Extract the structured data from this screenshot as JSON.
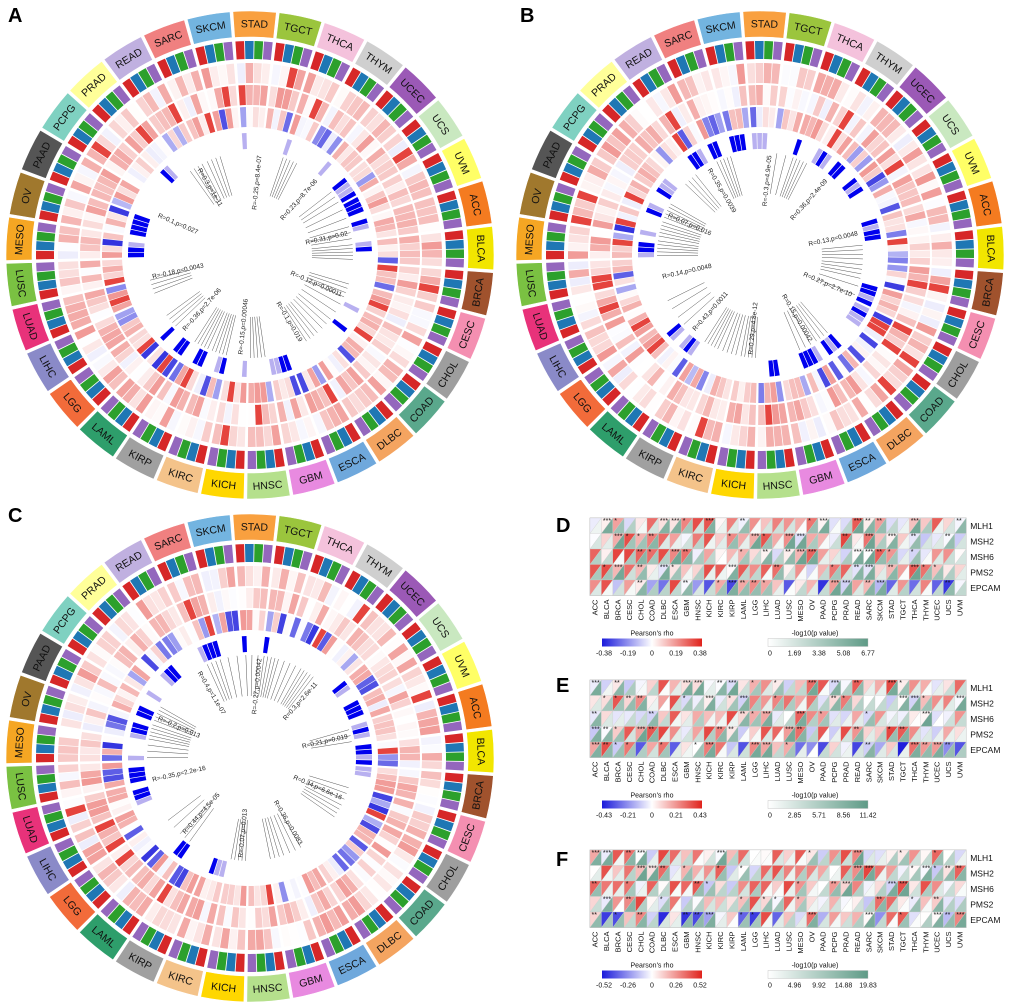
{
  "chart_data": {
    "type": "heatmap",
    "panel_labels": [
      "A",
      "B",
      "C",
      "D",
      "E",
      "F"
    ],
    "cancers_circle": [
      "ACC",
      "BLCA",
      "BRCA",
      "CESC",
      "CHOL",
      "COAD",
      "DLBC",
      "ESCA",
      "GBM",
      "HNSC",
      "KICH",
      "KIRC",
      "KIRP",
      "LAML",
      "LGG",
      "LIHC",
      "LUAD",
      "LUSC",
      "MESO",
      "OV",
      "PAAD",
      "PCPG",
      "PRAD",
      "READ",
      "SARC",
      "SKCM",
      "STAD",
      "TGCT",
      "THCA",
      "THYM",
      "UCEC",
      "UCS",
      "UVM"
    ],
    "cancers_heatmap": [
      "ACC",
      "BLCA",
      "BRCA",
      "CESC",
      "CHOL",
      "COAD",
      "DLBC",
      "ESCA",
      "GBM",
      "HNSC",
      "KICH",
      "KIRC",
      "KIRP",
      "LAML",
      "LGG",
      "LIHC",
      "LUAD",
      "LUSC",
      "MESO",
      "OV",
      "PAAD",
      "PCPG",
      "PRAD",
      "READ",
      "SARC",
      "SKCM",
      "STAD",
      "TGCT",
      "THCA",
      "THYM",
      "UCEC",
      "UCS",
      "UVM"
    ],
    "genes": [
      "MLH1",
      "MSH2",
      "MSH6",
      "PMS2",
      "EPCAM"
    ],
    "cancer_colors": {
      "ACC": "#f47b20",
      "BLCA": "#f2e600",
      "BRCA": "#a0522d",
      "CESC": "#f48fb1",
      "CHOL": "#9e9e9e",
      "COAD": "#5aa88c",
      "DLBC": "#f4a460",
      "ESCA": "#6fa8dc",
      "GBM": "#e88ae0",
      "HNSC": "#b5e08c",
      "KICH": "#ffd700",
      "KIRC": "#f4c38a",
      "KIRP": "#a0a0a0",
      "LAML": "#2e9e6b",
      "LGG": "#f26b3a",
      "LIHC": "#8a8ac8",
      "LUAD": "#e8327a",
      "LUSC": "#7ac142",
      "MESO": "#f5a623",
      "OV": "#a0782d",
      "PAAD": "#555555",
      "PCPG": "#7fd1c1",
      "PRAD": "#ffff99",
      "READ": "#c0b0e0",
      "SARC": "#f08080",
      "SKCM": "#73b4e0",
      "STAD": "#f9a03f",
      "TGCT": "#9bc53d",
      "THCA": "#f4c2dc",
      "THYM": "#cfcfcf",
      "UCEC": "#9b59b6",
      "UCS": "#c9e8c0",
      "UVM": "#ffff66"
    },
    "ring_colors": [
      "#d62728",
      "#1f77b4",
      "#2ca02c",
      "#9467bd"
    ],
    "circle_annotations": {
      "A": [
        "R=0.31,p=0.02",
        "R=-0.12,p=0.00011",
        "R=-0.1,p=0.019",
        "R=-0.15,p=0.00046",
        "R=-0.36,p=2.7e-06",
        "R=-0.18,p=0.0043",
        "R=0.1,p=0.027",
        "R=0.3,p=1e-11",
        "R=-0.25,p=8.4e-07",
        "R=0.23,p=8.7e-06"
      ],
      "B": [
        "R=0.13,p=0.0048",
        "R=0.27,p=2.7e-10",
        "R=0.15,p=0.00042",
        "R=0.29,p=4.8e-12",
        "R=0.43,p=0.0011",
        "R=0.14,p=0.0048",
        "R=0.07,p=0.016",
        "R=0.35,p=0.0039",
        "R=-0.3,p=4.9e-05",
        "R=0.36,p=2.4e-09"
      ],
      "C": [
        "R=0.21,p=0.019",
        "R=0.34,p=6.6e-16",
        "R=0.36,p=0.0083",
        "R=-0.07,p=0.013",
        "R=0.44,p=4.5e-05",
        "R=-0.35,p=2.2e-16",
        "R=-0.2,p=0.013",
        "R=0.4,p=1.1e-07",
        "R=-0.27,p=0.00042",
        "R=0.3,p=2.6e-11"
      ]
    },
    "legends": [
      {
        "panel": "D",
        "title_rho": "Pearson's rho",
        "rho_ticks": [
          "-0.38",
          "-0.19",
          "0",
          "0.19",
          "0.38"
        ],
        "title_p": "-log10(p value)",
        "p_ticks": [
          "0",
          "1.69",
          "3.38",
          "5.08",
          "6.77"
        ]
      },
      {
        "panel": "E",
        "title_rho": "Pearson's rho",
        "rho_ticks": [
          "-0.43",
          "-0.21",
          "0",
          "0.21",
          "0.43"
        ],
        "title_p": "-log10(p value)",
        "p_ticks": [
          "0",
          "2.85",
          "5.71",
          "8.56",
          "11.42"
        ]
      },
      {
        "panel": "F",
        "title_rho": "Pearson's rho",
        "rho_ticks": [
          "-0.52",
          "-0.26",
          "0",
          "0.26",
          "0.52"
        ],
        "title_p": "-log10(p value)",
        "p_ticks": [
          "0",
          "4.96",
          "9.92",
          "14.88",
          "19.83"
        ]
      }
    ],
    "colors": {
      "negative": "#1a1adb",
      "zero": "#ffffff",
      "positive": "#e0231c",
      "pvalue_high": "#5e9a86",
      "inner_neg": "#0000ee",
      "inner_pos": "#8b0000"
    }
  }
}
